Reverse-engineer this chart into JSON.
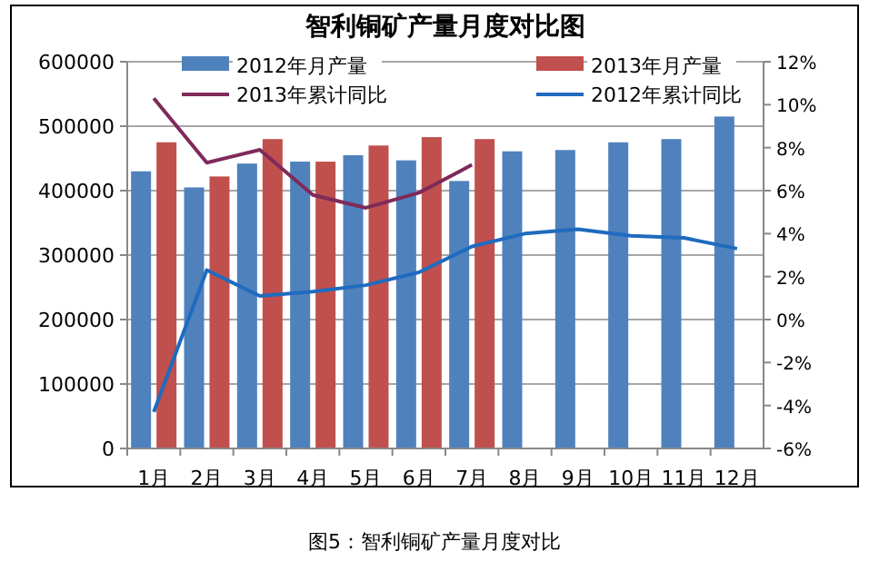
{
  "chart_data": {
    "type": "bar",
    "title": "智利铜矿产量月度对比图",
    "categories": [
      "1月",
      "2月",
      "3月",
      "4月",
      "5月",
      "6月",
      "7月",
      "8月",
      "9月",
      "10月",
      "11月",
      "12月"
    ],
    "series": [
      {
        "name": "2012年月产量",
        "color": "#4f81bd",
        "values": [
          430000,
          405000,
          442000,
          445000,
          455000,
          447000,
          415000,
          461000,
          463000,
          475000,
          480000,
          515000
        ]
      },
      {
        "name": "2013年月产量",
        "color": "#c0504d",
        "values": [
          475000,
          422000,
          480000,
          445000,
          470000,
          483000,
          480000,
          null,
          null,
          null,
          null,
          null
        ]
      },
      {
        "name": "2013年累计同比",
        "type": "line",
        "axis": "y2",
        "color": "#7f2a5a",
        "values": [
          10.3,
          7.3,
          7.9,
          5.8,
          5.2,
          5.9,
          7.2,
          null,
          null,
          null,
          null,
          null
        ]
      },
      {
        "name": "2012年累计同比",
        "type": "line",
        "axis": "y2",
        "color": "#1f6bbf",
        "values": [
          -4.3,
          2.3,
          1.1,
          1.3,
          1.6,
          2.2,
          3.4,
          4.0,
          4.2,
          3.9,
          3.8,
          3.3
        ]
      }
    ],
    "ylim": [
      0,
      600000
    ],
    "yticks": [
      0,
      100000,
      200000,
      300000,
      400000,
      500000,
      600000
    ],
    "y2lim": [
      -6,
      12
    ],
    "y2ticks": [
      {
        "value": -6,
        "label": "-6%"
      },
      {
        "value": -4,
        "label": "-4%"
      },
      {
        "value": -2,
        "label": "-2%"
      },
      {
        "value": 0,
        "label": "0%"
      },
      {
        "value": 2,
        "label": "2%"
      },
      {
        "value": 4,
        "label": "4%"
      },
      {
        "value": 6,
        "label": "6%"
      },
      {
        "value": 8,
        "label": "8%"
      },
      {
        "value": 10,
        "label": "10%"
      },
      {
        "value": 12,
        "label": "12%"
      }
    ],
    "grid": "y",
    "legend": "top",
    "marker": "none",
    "line_style": "solid",
    "annotations": [
      "图5：智利铜矿产量月度对比"
    ]
  }
}
